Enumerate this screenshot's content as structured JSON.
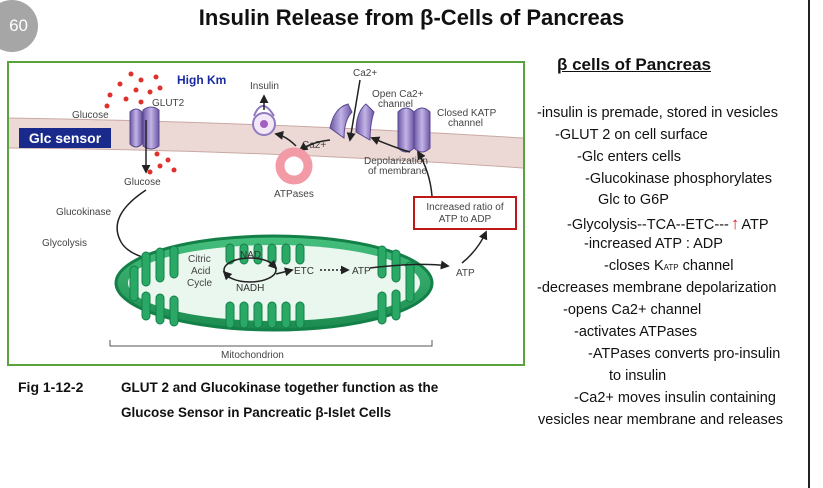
{
  "slide_number": "60",
  "title": "Insulin Release from β-Cells of Pancreas",
  "diagram": {
    "labels": {
      "high_km": "High Km",
      "glut2": "GLUT2",
      "glucose_outside": "Glucose",
      "glc_sensor": "Glc sensor",
      "glucose_inside": "Glucose",
      "glucokinase": "Glucokinase",
      "glycolysis": "Glycolysis",
      "insulin": "Insulin",
      "ca_top": "Ca2+",
      "open_ca_channel_1": "Open Ca2+",
      "open_ca_channel_2": "channel",
      "closed_katp_1": "Closed KATP",
      "closed_katp_2": "channel",
      "ca_mid": "Ca2+",
      "depolarization_1": "Depolarization",
      "depolarization_2": "of membrane",
      "atpases": "ATPases",
      "increased_ratio_1": "Increased ratio of",
      "increased_ratio_2": "ATP to ADP",
      "atp_right": "ATP",
      "nad": "NAD",
      "nadh": "NADH",
      "citric_1": "Citric",
      "citric_2": "Acid",
      "citric_3": "Cycle",
      "etc": "ETC",
      "atp_mito": "ATP",
      "mitochondrion": "Mitochondrion"
    }
  },
  "caption": {
    "fig_label": "Fig 1-12-2",
    "line1": "GLUT 2 and Glucokinase together function as the",
    "line2": "Glucose Sensor in Pancreatic β-Islet Cells"
  },
  "notes": {
    "heading": "β cells of Pancreas",
    "lines": [
      "-insulin is premade, stored in vesicles",
      "-GLUT 2 on cell surface",
      "-Glc enters cells",
      "-Glucokinase phosphorylates",
      "Glc to G6P",
      "-Glycolysis--TCA--ETC---",
      "ATP",
      "-increased ATP : ADP",
      "-closes K",
      "ATP",
      " channel",
      "-decreases membrane depolarization",
      "-opens Ca2+ channel",
      "-activates ATPases",
      "-ATPases converts pro-insulin",
      "to insulin",
      "-Ca2+ moves insulin containing",
      "vesicles near membrane and releases"
    ]
  },
  "colors": {
    "frame": "#5aa23c",
    "membrane": "#ecd9d6",
    "mitochondrion": "#22a060",
    "channel": "#9a84c4",
    "atpase": "#f29aa6",
    "sensor_box": "#1a2a8c",
    "ratio_box": "#c01818",
    "up_arrow": "#e02020"
  }
}
